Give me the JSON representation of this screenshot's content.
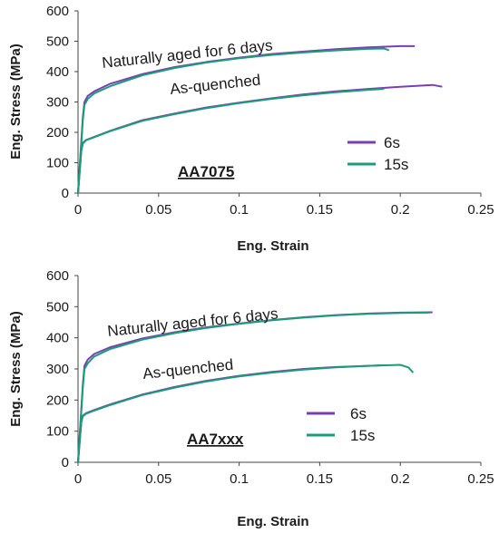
{
  "chart_data": [
    {
      "type": "line",
      "title": "",
      "xlabel": "Eng. Strain",
      "ylabel": "Eng. Stress (MPa)",
      "xlim": [
        0,
        0.25
      ],
      "ylim": [
        0,
        600
      ],
      "xticks": [
        "0",
        "0.05",
        "0.1",
        "0.15",
        "0.2",
        "0.25"
      ],
      "yticks": [
        "0",
        "100",
        "200",
        "300",
        "400",
        "500",
        "600"
      ],
      "grid": false,
      "legend_position": "right-middle",
      "annotations": [
        {
          "text": "Naturally aged for 6 days",
          "x": 0.013,
          "y": 440
        },
        {
          "text": "As-quenched",
          "x": 0.052,
          "y": 340
        },
        {
          "text": "AA7075",
          "x": 0.04,
          "y": 70
        }
      ],
      "series": [
        {
          "name": "6s",
          "color": "#7b3fb0",
          "condition": "Naturally aged for 6 days",
          "x": [
            0,
            0.003,
            0.004,
            0.006,
            0.01,
            0.02,
            0.04,
            0.06,
            0.08,
            0.1,
            0.12,
            0.14,
            0.16,
            0.18,
            0.2,
            0.209
          ],
          "y": [
            0,
            250,
            300,
            320,
            335,
            360,
            392,
            415,
            432,
            446,
            458,
            466,
            474,
            480,
            484,
            484
          ]
        },
        {
          "name": "15s",
          "color": "#1a9c78",
          "condition": "Naturally aged for 6 days",
          "x": [
            0,
            0.003,
            0.004,
            0.006,
            0.01,
            0.02,
            0.04,
            0.06,
            0.08,
            0.1,
            0.12,
            0.14,
            0.16,
            0.18,
            0.19,
            0.193
          ],
          "y": [
            0,
            240,
            290,
            310,
            328,
            352,
            388,
            412,
            430,
            444,
            455,
            463,
            470,
            475,
            476,
            470
          ]
        },
        {
          "name": "6s",
          "color": "#7b3fb0",
          "condition": "As-quenched",
          "x": [
            0,
            0.002,
            0.003,
            0.005,
            0.01,
            0.02,
            0.04,
            0.06,
            0.08,
            0.1,
            0.12,
            0.14,
            0.16,
            0.18,
            0.2,
            0.22,
            0.226
          ],
          "y": [
            0,
            140,
            165,
            175,
            185,
            205,
            240,
            262,
            282,
            298,
            312,
            325,
            335,
            343,
            350,
            356,
            350
          ]
        },
        {
          "name": "15s",
          "color": "#1a9c78",
          "condition": "As-quenched",
          "x": [
            0,
            0.002,
            0.003,
            0.005,
            0.01,
            0.02,
            0.04,
            0.06,
            0.08,
            0.1,
            0.12,
            0.14,
            0.16,
            0.18,
            0.19
          ],
          "y": [
            0,
            138,
            163,
            174,
            184,
            204,
            238,
            260,
            280,
            296,
            310,
            322,
            332,
            340,
            343
          ]
        }
      ]
    },
    {
      "type": "line",
      "title": "",
      "xlabel": "Eng. Strain",
      "ylabel": "Eng. Stress (MPa)",
      "xlim": [
        0,
        0.25
      ],
      "ylim": [
        0,
        600
      ],
      "xticks": [
        "0",
        "0.05",
        "0.1",
        "0.15",
        "0.2",
        "0.25"
      ],
      "yticks": [
        "0",
        "100",
        "200",
        "300",
        "400",
        "500",
        "600"
      ],
      "grid": false,
      "legend_position": "right-middle",
      "annotations": [
        {
          "text": "Naturally aged for 6 days",
          "x": 0.015,
          "y": 400
        },
        {
          "text": "As-quenched",
          "x": 0.05,
          "y": 300
        },
        {
          "text": "AA7xxx",
          "x": 0.04,
          "y": 100
        }
      ],
      "series": [
        {
          "name": "6s",
          "color": "#7b3fb0",
          "condition": "Naturally aged for 6 days",
          "x": [
            0,
            0.003,
            0.004,
            0.006,
            0.01,
            0.02,
            0.04,
            0.06,
            0.08,
            0.1,
            0.12,
            0.14,
            0.16,
            0.18,
            0.2,
            0.22
          ],
          "y": [
            0,
            250,
            310,
            330,
            348,
            370,
            398,
            418,
            434,
            446,
            457,
            466,
            473,
            478,
            481,
            482
          ]
        },
        {
          "name": "15s",
          "color": "#1a9c78",
          "condition": "Naturally aged for 6 days",
          "x": [
            0,
            0.003,
            0.004,
            0.006,
            0.01,
            0.02,
            0.04,
            0.06,
            0.08,
            0.1,
            0.12,
            0.14,
            0.16,
            0.18,
            0.2,
            0.218
          ],
          "y": [
            0,
            240,
            300,
            318,
            340,
            364,
            394,
            415,
            432,
            445,
            456,
            465,
            472,
            477,
            480,
            481
          ]
        },
        {
          "name": "6s",
          "color": "#7b3fb0",
          "condition": "As-quenched",
          "x": [
            0,
            0.002,
            0.003,
            0.005,
            0.01,
            0.02,
            0.04,
            0.06,
            0.08,
            0.1,
            0.12,
            0.14,
            0.16,
            0.18,
            0.19
          ],
          "y": [
            0,
            130,
            150,
            158,
            168,
            186,
            218,
            242,
            262,
            278,
            290,
            300,
            306,
            310,
            312
          ]
        },
        {
          "name": "15s",
          "color": "#1a9c78",
          "condition": "As-quenched",
          "x": [
            0,
            0.002,
            0.003,
            0.005,
            0.01,
            0.02,
            0.04,
            0.06,
            0.08,
            0.1,
            0.12,
            0.14,
            0.16,
            0.18,
            0.2,
            0.205,
            0.208
          ],
          "y": [
            0,
            128,
            148,
            156,
            166,
            184,
            216,
            240,
            260,
            276,
            288,
            298,
            305,
            310,
            313,
            305,
            288
          ]
        }
      ]
    }
  ],
  "legend": [
    {
      "label": "6s",
      "color": "#7b3fb0"
    },
    {
      "label": "15s",
      "color": "#1a9c78"
    }
  ]
}
